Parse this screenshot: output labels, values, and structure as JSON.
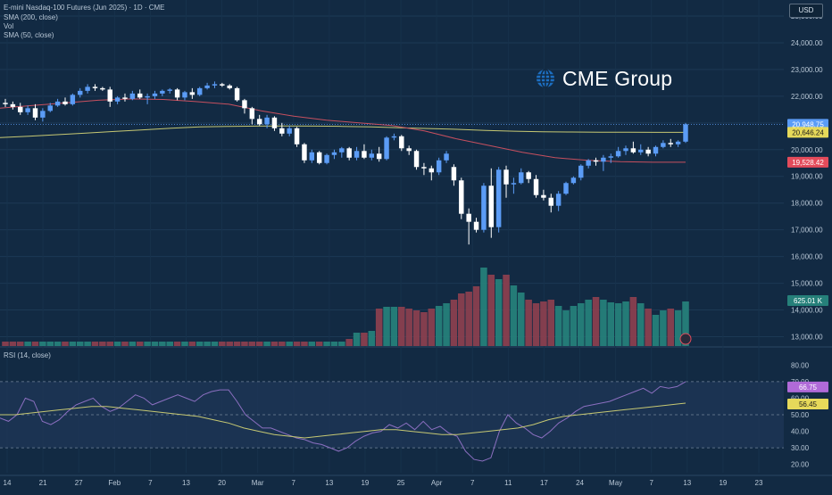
{
  "header": {
    "title": "E-mini Nasdaq-100 Futures (Jun 2025) · 1D · CME",
    "indicators": [
      "SMA (200, close)",
      "Vol",
      "SMA (50, close)"
    ]
  },
  "currency_button": "USD",
  "watermark": "CME Group",
  "rsi_title": "RSI (14, close)",
  "colors": {
    "background": "#122a43",
    "up": "#5b9cf6",
    "down": "#ffffff",
    "vol_up": "#26807a",
    "vol_down": "#8a3f4f",
    "sma200": "#c6c873",
    "sma50": "#c7505f",
    "rsi": "#8b6fc0",
    "rsi_ma": "#c6c873"
  },
  "chart_data": [
    {
      "type": "candlestick",
      "title": "E-mini Nasdaq-100 Futures (Jun 2025) · 1D · CME",
      "y_axis_ticks": [
        "25,000.00",
        "24,000.00",
        "23,000.00",
        "22,000.00",
        "21,000.00",
        "20,000.00",
        "19,000.00",
        "18,000.00",
        "17,000.00",
        "16,000.00",
        "15,000.00",
        "14,000.00",
        "13,000.00"
      ],
      "x_axis_ticks": [
        "14",
        "21",
        "27",
        "Feb",
        "7",
        "13",
        "20",
        "Mar",
        "7",
        "13",
        "19",
        "25",
        "Apr",
        "7",
        "11",
        "17",
        "24",
        "May",
        "7",
        "13",
        "19",
        "23"
      ],
      "ylim": [
        12650,
        25600
      ],
      "grid": true,
      "ohlc": [
        [
          21750,
          21900,
          21600,
          21700
        ],
        [
          21700,
          21800,
          21500,
          21600
        ],
        [
          21600,
          21750,
          21300,
          21400
        ],
        [
          21400,
          21650,
          21300,
          21550
        ],
        [
          21550,
          21700,
          21100,
          21200
        ],
        [
          21200,
          21550,
          21050,
          21450
        ],
        [
          21450,
          21750,
          21400,
          21650
        ],
        [
          21650,
          21900,
          21600,
          21800
        ],
        [
          21800,
          21950,
          21650,
          21700
        ],
        [
          21700,
          22100,
          21650,
          22050
        ],
        [
          22050,
          22300,
          21950,
          22200
        ],
        [
          22200,
          22450,
          22100,
          22350
        ],
        [
          22350,
          22450,
          22200,
          22300
        ],
        [
          22300,
          22350,
          22200,
          22250
        ],
        [
          22250,
          22350,
          21600,
          21800
        ],
        [
          21800,
          22000,
          21700,
          21950
        ],
        [
          21950,
          22100,
          21800,
          21900
        ],
        [
          21900,
          22200,
          21850,
          22100
        ],
        [
          22100,
          22250,
          21900,
          21950
        ],
        [
          21950,
          22100,
          21700,
          22000
        ],
        [
          22000,
          22200,
          21900,
          22100
        ],
        [
          22100,
          22250,
          22000,
          22200
        ],
        [
          22200,
          22300,
          22100,
          22250
        ],
        [
          22250,
          22300,
          21850,
          21950
        ],
        [
          21950,
          22200,
          21850,
          22150
        ],
        [
          22150,
          22300,
          21900,
          22050
        ],
        [
          22050,
          22350,
          22000,
          22300
        ],
        [
          22300,
          22500,
          22250,
          22400
        ],
        [
          22400,
          22550,
          22300,
          22450
        ],
        [
          22450,
          22500,
          22350,
          22400
        ],
        [
          22400,
          22450,
          22250,
          22300
        ],
        [
          22300,
          22350,
          21800,
          21850
        ],
        [
          21850,
          21900,
          21350,
          21550
        ],
        [
          21550,
          21600,
          20950,
          21150
        ],
        [
          21150,
          21300,
          20900,
          20950
        ],
        [
          20950,
          21300,
          20800,
          21200
        ],
        [
          21200,
          21250,
          20700,
          20800
        ],
        [
          20800,
          21000,
          20500,
          20600
        ],
        [
          20600,
          20900,
          20500,
          20800
        ],
        [
          20800,
          20850,
          20100,
          20200
        ],
        [
          20200,
          20250,
          19500,
          19600
        ],
        [
          19600,
          20000,
          19500,
          19900
        ],
        [
          19900,
          19950,
          19450,
          19500
        ],
        [
          19500,
          19850,
          19450,
          19800
        ],
        [
          19800,
          20000,
          19650,
          19900
        ],
        [
          19900,
          20100,
          19700,
          20050
        ],
        [
          20050,
          20100,
          19600,
          19700
        ],
        [
          19700,
          20100,
          19600,
          19950
        ],
        [
          19950,
          20200,
          19650,
          19700
        ],
        [
          19700,
          20000,
          19600,
          19850
        ],
        [
          19850,
          20100,
          19550,
          19650
        ],
        [
          19650,
          20500,
          19600,
          20450
        ],
        [
          20450,
          20600,
          20350,
          20500
        ],
        [
          20500,
          20550,
          19950,
          20050
        ],
        [
          20050,
          20150,
          19800,
          19950
        ],
        [
          19950,
          20000,
          19250,
          19350
        ],
        [
          19350,
          19500,
          19050,
          19300
        ],
        [
          19300,
          19400,
          18850,
          19150
        ],
        [
          19150,
          19700,
          19050,
          19600
        ],
        [
          19600,
          19950,
          19500,
          19850
        ],
        [
          19350,
          19450,
          18650,
          18850
        ],
        [
          18850,
          18950,
          17400,
          17600
        ],
        [
          17600,
          17800,
          16450,
          17300
        ],
        [
          17300,
          17450,
          16900,
          17000
        ],
        [
          17000,
          18750,
          16900,
          18650
        ],
        [
          18650,
          19300,
          16700,
          17100
        ],
        [
          17100,
          19350,
          16900,
          19250
        ],
        [
          19250,
          19400,
          18200,
          18700
        ],
        [
          18700,
          18950,
          18350,
          18750
        ],
        [
          18750,
          19300,
          18700,
          19150
        ],
        [
          19150,
          19200,
          18750,
          18900
        ],
        [
          18900,
          19050,
          18200,
          18300
        ],
        [
          18300,
          18500,
          18100,
          18200
        ],
        [
          18200,
          18350,
          17650,
          17900
        ],
        [
          17900,
          18450,
          17700,
          18350
        ],
        [
          18350,
          18800,
          18300,
          18750
        ],
        [
          18750,
          19000,
          18700,
          18950
        ],
        [
          18950,
          19450,
          18850,
          19400
        ],
        [
          19400,
          19650,
          19300,
          19600
        ],
        [
          19600,
          19700,
          19400,
          19550
        ],
        [
          19550,
          19800,
          19200,
          19700
        ],
        [
          19700,
          19850,
          19500,
          19750
        ],
        [
          19750,
          20100,
          19700,
          19950
        ],
        [
          19950,
          20150,
          19800,
          20050
        ],
        [
          20050,
          20300,
          19850,
          19900
        ],
        [
          19900,
          20200,
          19800,
          20000
        ],
        [
          20000,
          20100,
          19750,
          19850
        ],
        [
          19850,
          20150,
          19750,
          20100
        ],
        [
          20100,
          20350,
          20050,
          20250
        ],
        [
          20250,
          20400,
          20100,
          20200
        ],
        [
          20200,
          20350,
          20100,
          20300
        ],
        [
          20300,
          21000,
          20250,
          20950
        ]
      ],
      "volume": [
        0.05,
        0.05,
        0.05,
        0.05,
        0.05,
        0.05,
        0.05,
        0.05,
        0.05,
        0.05,
        0.05,
        0.05,
        0.05,
        0.05,
        0.05,
        0.05,
        0.05,
        0.05,
        0.05,
        0.05,
        0.05,
        0.05,
        0.05,
        0.05,
        0.05,
        0.05,
        0.05,
        0.05,
        0.05,
        0.05,
        0.05,
        0.05,
        0.05,
        0.05,
        0.05,
        0.05,
        0.05,
        0.05,
        0.05,
        0.05,
        0.05,
        0.05,
        0.05,
        0.05,
        0.05,
        0.05,
        0.08,
        0.15,
        0.15,
        0.17,
        0.42,
        0.44,
        0.44,
        0.44,
        0.42,
        0.4,
        0.38,
        0.42,
        0.45,
        0.48,
        0.52,
        0.59,
        0.61,
        0.67,
        0.88,
        0.8,
        0.75,
        0.8,
        0.68,
        0.6,
        0.52,
        0.48,
        0.5,
        0.52,
        0.45,
        0.4,
        0.45,
        0.48,
        0.52,
        0.55,
        0.52,
        0.49,
        0.48,
        0.5,
        0.55,
        0.48,
        0.42,
        0.35,
        0.4,
        0.42,
        0.4,
        0.5
      ],
      "volume_max_label": "625.01 K",
      "volume_scale_max": 1.0,
      "series": [
        {
          "name": "SMA (200, close)",
          "values": [
            20450,
            20500,
            20560,
            20620,
            20680,
            20740,
            20800,
            20850,
            20870,
            20880,
            20885,
            20880,
            20870,
            20850,
            20820,
            20790,
            20760,
            20720,
            20690,
            20670,
            20660,
            20655,
            20650,
            20648,
            20646
          ]
        },
        {
          "name": "SMA (50, close)",
          "values": [
            21550,
            21650,
            21750,
            21850,
            21900,
            21880,
            21800,
            21700,
            21450,
            21250,
            21100,
            21000,
            20900,
            20700,
            20400,
            20150,
            19900,
            19700,
            19600,
            19550,
            19530,
            19528
          ]
        }
      ],
      "price_labels": [
        {
          "text": "20,948.75",
          "value": 20948.75,
          "color": "#5b9cf6"
        },
        {
          "text": "20,646.24",
          "value": 20646.24,
          "color": "#e6d95a"
        },
        {
          "text": "19,528.42",
          "value": 19528.42,
          "color": "#e34b5b"
        }
      ]
    },
    {
      "type": "line",
      "title": "RSI (14, close)",
      "y_axis_ticks": [
        "80.00",
        "70.00",
        "60.00",
        "50.00",
        "40.00",
        "30.00",
        "20.00"
      ],
      "ylim": [
        15,
        85
      ],
      "bands": [
        30,
        50,
        70
      ],
      "series": [
        {
          "name": "RSI",
          "values": [
            48,
            46,
            50,
            60,
            58,
            46,
            44,
            47,
            52,
            56,
            58,
            60,
            55,
            52,
            54,
            58,
            62,
            60,
            56,
            58,
            60,
            62,
            60,
            58,
            62,
            64,
            65,
            65,
            58,
            50,
            46,
            42,
            42,
            40,
            38,
            36,
            35,
            33,
            32,
            30,
            28,
            30,
            34,
            37,
            39,
            40,
            44,
            42,
            45,
            41,
            46,
            41,
            43,
            39,
            37,
            28,
            23,
            22,
            24,
            40,
            50,
            45,
            42,
            38,
            36,
            40,
            45,
            48,
            52,
            55,
            56,
            57,
            58,
            60,
            62,
            64,
            66,
            63,
            67,
            66,
            67,
            70
          ]
        },
        {
          "name": "RSI-based MA",
          "values": [
            50,
            50,
            51,
            52,
            53,
            54,
            55,
            55,
            54,
            53,
            52,
            51,
            50,
            49,
            47,
            45,
            42,
            40,
            38,
            37,
            36,
            37,
            38,
            39,
            40,
            41,
            41,
            40,
            39,
            38,
            38,
            39,
            40,
            41,
            42,
            44,
            47,
            49,
            50,
            51,
            52,
            53,
            54,
            55,
            56,
            57
          ]
        }
      ],
      "value_labels": [
        {
          "text": "66.75",
          "value": 66.75,
          "color": "#b06ad8"
        },
        {
          "text": "56.45",
          "value": 56.45,
          "color": "#e6d95a"
        }
      ]
    }
  ]
}
